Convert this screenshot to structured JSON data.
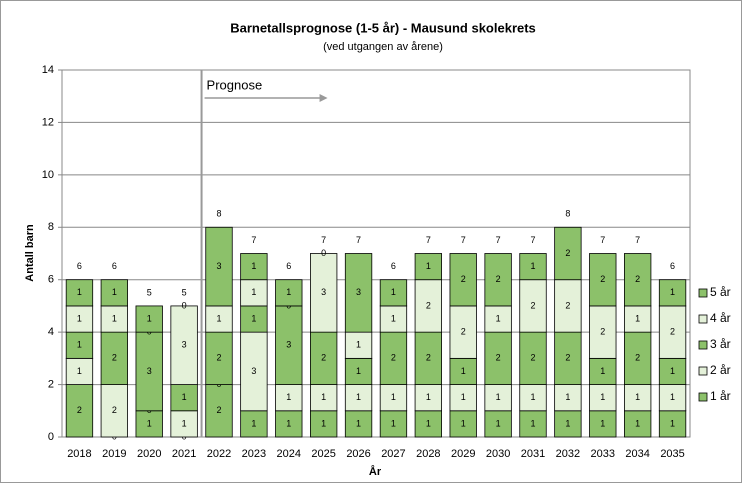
{
  "chart_data": {
    "type": "stacked-bar",
    "title": "Barnetallsprognose (1-5 år) - Mausund skolekrets",
    "subtitle": "(ved utgangen av årene)",
    "y_label": "Antall barn",
    "x_label": "År",
    "annotation": "Prognose",
    "categories": [
      "2018",
      "2019",
      "2020",
      "2021",
      "2022",
      "2023",
      "2024",
      "2025",
      "2026",
      "2027",
      "2028",
      "2029",
      "2030",
      "2031",
      "2032",
      "2033",
      "2034",
      "2035"
    ],
    "series": [
      {
        "name": "1 år",
        "color": "#8cc16a",
        "values": [
          2,
          0,
          1,
          0,
          2,
          1,
          1,
          1,
          1,
          1,
          1,
          1,
          1,
          1,
          1,
          1,
          1,
          1
        ]
      },
      {
        "name": "2 år",
        "color": "#e4f1d9",
        "values": [
          1,
          2,
          0,
          1,
          0,
          3,
          1,
          1,
          1,
          1,
          1,
          1,
          1,
          1,
          1,
          1,
          1,
          1
        ]
      },
      {
        "name": "3 år",
        "color": "#8cc16a",
        "values": [
          1,
          2,
          3,
          1,
          2,
          1,
          3,
          2,
          1,
          2,
          2,
          1,
          2,
          2,
          2,
          1,
          2,
          1
        ]
      },
      {
        "name": "4 år",
        "color": "#e4f1d9",
        "values": [
          1,
          1,
          0,
          3,
          1,
          1,
          0,
          3,
          1,
          1,
          2,
          2,
          1,
          2,
          2,
          2,
          1,
          2
        ]
      },
      {
        "name": "5 år",
        "color": "#8cc16a",
        "values": [
          1,
          1,
          1,
          0,
          3,
          1,
          1,
          0,
          3,
          1,
          1,
          2,
          2,
          1,
          2,
          2,
          2,
          1
        ]
      }
    ],
    "totals": [
      6,
      6,
      5,
      5,
      8,
      7,
      6,
      7,
      7,
      6,
      7,
      7,
      7,
      7,
      8,
      7,
      7,
      6
    ],
    "ylim": [
      0,
      14
    ],
    "yticks": [
      0,
      2,
      4,
      6,
      8,
      10,
      12,
      14
    ],
    "grid": true
  }
}
